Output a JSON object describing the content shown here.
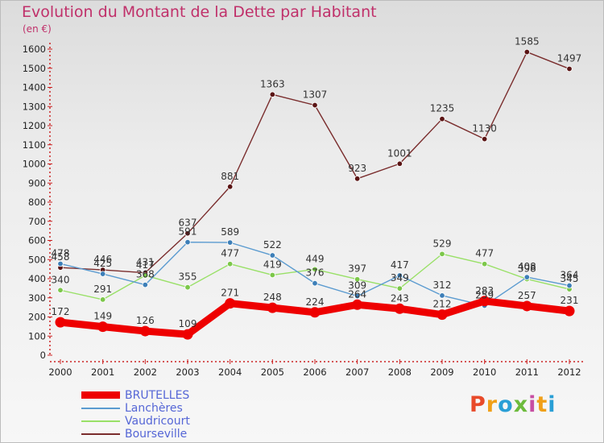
{
  "header": {
    "title": "Evolution du Montant de la Dette par Habitant",
    "subtitle": "(en €)"
  },
  "logo": {
    "text": "Proxiti",
    "colors": [
      "#e84a2a",
      "#f0a019",
      "#2a9fd6",
      "#6cbb3c",
      "#c74fa3",
      "#f0a019",
      "#2a9fd6"
    ]
  },
  "chart_data": {
    "type": "line",
    "title": "Evolution du Montant de la Dette par Habitant",
    "subtitle": "(en €)",
    "x": [
      "2000",
      "2001",
      "2002",
      "2003",
      "2004",
      "2005",
      "2006",
      "2007",
      "2008",
      "2009",
      "2010",
      "2011",
      "2012"
    ],
    "ylim": [
      0,
      1600
    ],
    "yticks": [
      0,
      100,
      200,
      300,
      400,
      500,
      600,
      700,
      800,
      900,
      1000,
      1100,
      1200,
      1300,
      1400,
      1500,
      1600
    ],
    "grid": false,
    "legend_position": "bottom-left",
    "series": [
      {
        "name": "BRUTELLES",
        "color": "#ee0000",
        "values": [
          172,
          149,
          126,
          109,
          271,
          248,
          224,
          264,
          243,
          212,
          283,
          257,
          231
        ]
      },
      {
        "name": "Lanchères",
        "color": "#5b9bd0",
        "values": [
          478,
          425,
          368,
          591,
          589,
          522,
          376,
          309,
          417,
          312,
          259,
          408,
          364
        ]
      },
      {
        "name": "Vaudricourt",
        "color": "#99e067",
        "values": [
          340,
          291,
          417,
          355,
          477,
          419,
          449,
          397,
          349,
          529,
          477,
          398,
          345
        ]
      },
      {
        "name": "Bourseville",
        "color": "#7a2d2d",
        "values": [
          458,
          446,
          431,
          637,
          881,
          1363,
          1307,
          923,
          1001,
          1235,
          1130,
          1585,
          1497
        ]
      }
    ]
  }
}
